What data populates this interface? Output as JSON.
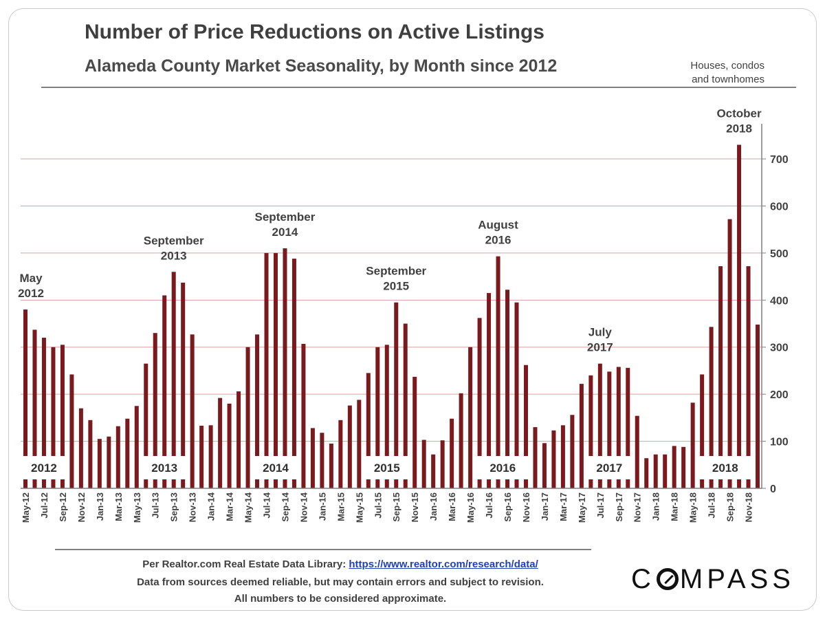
{
  "header": {
    "title": "Number of Price Reductions on Active Listings",
    "subtitle": "Alameda County Market Seasonality, by Month since 2012",
    "note_line1": "Houses, condos",
    "note_line2": "and townhomes"
  },
  "footer": {
    "source_prefix": "Per Realtor.com Real Estate  Data Library:",
    "source_link": "https://www.realtor.com/research/data/",
    "disclaimer": "Data from sources  deemed reliable, but may contain errors and subject to revision.",
    "approx": "All numbers to be considered approximate.",
    "logo": "COMPASS"
  },
  "colors": {
    "bar": "#7b1a1e",
    "grid": "#d9a0a0",
    "axis": "#7f7f7f",
    "text": "#404040"
  },
  "chart_data": {
    "type": "bar",
    "title": "Number of Price Reductions on Active Listings",
    "subtitle": "Alameda County Market Seasonality, by Month since 2012",
    "ylim": [
      0,
      760
    ],
    "y_ticks": [
      0,
      100,
      200,
      300,
      400,
      500,
      600,
      700
    ],
    "y_axis_side": "right",
    "grid": true,
    "categories": [
      "May-12",
      "Jun-12",
      "Jul-12",
      "Aug-12",
      "Sep-12",
      "Oct-12",
      "Nov-12",
      "Dec-12",
      "Jan-13",
      "Feb-13",
      "Mar-13",
      "Apr-13",
      "May-13",
      "Jun-13",
      "Jul-13",
      "Aug-13",
      "Sep-13",
      "Oct-13",
      "Nov-13",
      "Dec-13",
      "Jan-14",
      "Feb-14",
      "Mar-14",
      "Apr-14",
      "May-14",
      "Jun-14",
      "Jul-14",
      "Aug-14",
      "Sep-14",
      "Oct-14",
      "Nov-14",
      "Dec-14",
      "Jan-15",
      "Feb-15",
      "Mar-15",
      "Apr-15",
      "May-15",
      "Jun-15",
      "Jul-15",
      "Aug-15",
      "Sep-15",
      "Oct-15",
      "Nov-15",
      "Dec-15",
      "Jan-16",
      "Feb-16",
      "Mar-16",
      "Apr-16",
      "May-16",
      "Jun-16",
      "Jul-16",
      "Aug-16",
      "Sep-16",
      "Oct-16",
      "Nov-16",
      "Dec-16",
      "Jan-17",
      "Feb-17",
      "Mar-17",
      "Apr-17",
      "May-17",
      "Jun-17",
      "Jul-17",
      "Aug-17",
      "Sep-17",
      "Oct-17",
      "Nov-17",
      "Dec-17",
      "Jan-18",
      "Feb-18",
      "Mar-18",
      "Apr-18",
      "May-18",
      "Jun-18",
      "Jul-18",
      "Aug-18",
      "Sep-18",
      "Oct-18",
      "Nov-18",
      "Dec-18"
    ],
    "values": [
      380,
      337,
      320,
      300,
      305,
      242,
      170,
      145,
      105,
      110,
      132,
      148,
      175,
      265,
      330,
      410,
      460,
      437,
      327,
      133,
      134,
      192,
      180,
      206,
      300,
      327,
      500,
      500,
      510,
      488,
      307,
      128,
      118,
      95,
      145,
      176,
      188,
      245,
      300,
      305,
      395,
      350,
      237,
      103,
      72,
      102,
      148,
      202,
      300,
      362,
      415,
      493,
      422,
      395,
      262,
      130,
      96,
      123,
      134,
      156,
      222,
      240,
      265,
      248,
      258,
      256,
      154,
      64,
      72,
      72,
      90,
      88,
      182,
      242,
      343,
      472,
      572,
      730,
      472,
      348
    ],
    "x_tick_labels": [
      "May-12",
      "Jul-12",
      "Sep-12",
      "Nov-12",
      "Jan-13",
      "Mar-13",
      "May-13",
      "Jul-13",
      "Sep-13",
      "Nov-13",
      "Jan-14",
      "Mar-14",
      "May-14",
      "Jul-14",
      "Sep-14",
      "Nov-14",
      "Jan-15",
      "Mar-15",
      "May-15",
      "Jul-15",
      "Sep-15",
      "Nov-15",
      "Jan-16",
      "Mar-16",
      "May-16",
      "Jul-16",
      "Sep-16",
      "Nov-16",
      "Jan-17",
      "Mar-17",
      "May-17",
      "Jul-17",
      "Sep-17",
      "Nov-17",
      "Jan-18",
      "Mar-18",
      "May-18",
      "Jul-18",
      "Sep-18",
      "Nov-18"
    ],
    "annotations": [
      {
        "line1": "May",
        "line2": "2012",
        "index": 0
      },
      {
        "line1": "September",
        "line2": "2013",
        "index": 16
      },
      {
        "line1": "September",
        "line2": "2014",
        "index": 28
      },
      {
        "line1": "September",
        "line2": "2015",
        "index": 40
      },
      {
        "line1": "August",
        "line2": "2016",
        "index": 51
      },
      {
        "line1": "July",
        "line2": "2017",
        "index": 62
      },
      {
        "line1": "October",
        "line2": "2018",
        "index": 77
      }
    ],
    "year_labels": [
      {
        "text": "2012",
        "start": 0,
        "end": 4
      },
      {
        "text": "2013",
        "start": 13,
        "end": 17
      },
      {
        "text": "2014",
        "start": 25,
        "end": 29
      },
      {
        "text": "2015",
        "start": 37,
        "end": 41
      },
      {
        "text": "2016",
        "start": 49,
        "end": 54
      },
      {
        "text": "2017",
        "start": 61,
        "end": 65
      },
      {
        "text": "2018",
        "start": 73,
        "end": 78
      }
    ]
  }
}
